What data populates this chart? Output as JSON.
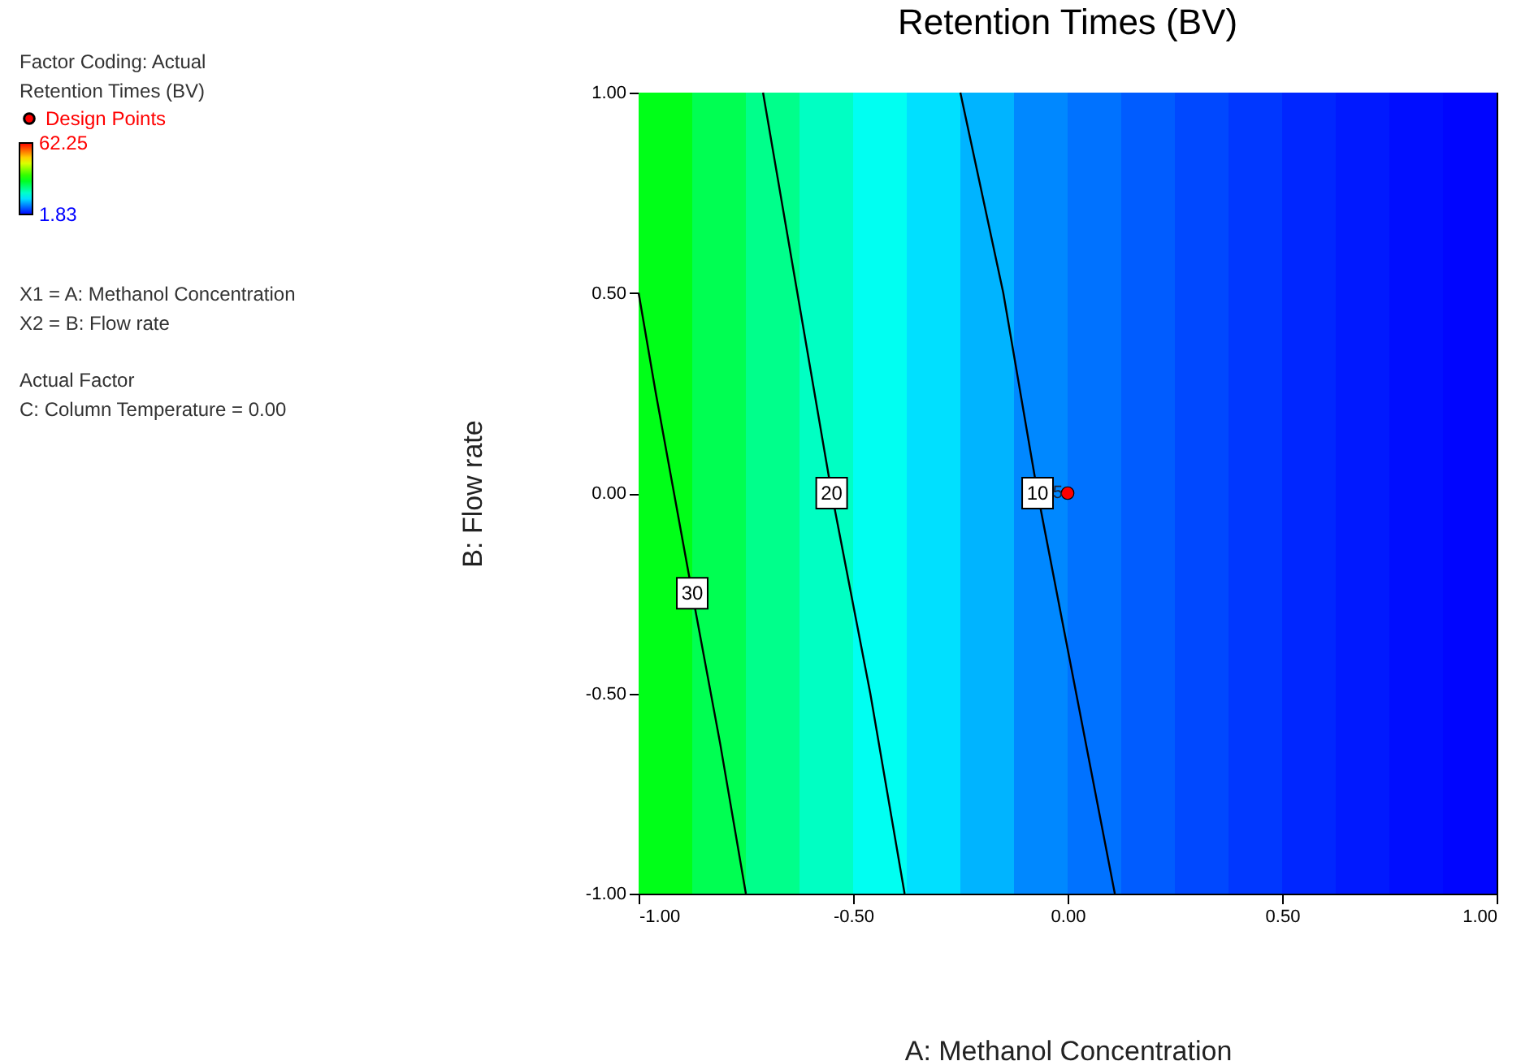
{
  "chart_data": {
    "type": "line",
    "title": "Retention Times (BV)",
    "xlabel": "A: Methanol Concentration",
    "ylabel": "B: Flow rate",
    "legend_title": "Retention Times (BV)",
    "xlim": [
      -1,
      1
    ],
    "ylim": [
      -1,
      1
    ],
    "xticks": [
      {
        "value": -1,
        "label": "-1.00"
      },
      {
        "value": -0.5,
        "label": "-0.50"
      },
      {
        "value": 0,
        "label": "0.00"
      },
      {
        "value": 0.5,
        "label": "0.50"
      },
      {
        "value": 1,
        "label": "1.00"
      }
    ],
    "yticks": [
      {
        "value": -1,
        "label": "-1.00"
      },
      {
        "value": -0.5,
        "label": "-0.50"
      },
      {
        "value": 0,
        "label": "0.00"
      },
      {
        "value": 0.5,
        "label": "0.50"
      },
      {
        "value": 1,
        "label": "1.00"
      }
    ],
    "grid": false,
    "legend": "top left",
    "clim": [
      1.83,
      62.25
    ],
    "cticks": [
      1.83,
      62.25
    ],
    "bands": [
      {
        "axis": "x",
        "from": -1,
        "to": -0.875,
        "color": "#00ff18"
      },
      {
        "axis": "x",
        "from": -0.875,
        "to": -0.75,
        "color": "#00ff52"
      },
      {
        "axis": "x",
        "from": -0.75,
        "to": -0.625,
        "color": "#00ff8b"
      },
      {
        "axis": "x",
        "from": -0.625,
        "to": -0.5,
        "color": "#00ffc3"
      },
      {
        "axis": "x",
        "from": -0.5,
        "to": -0.375,
        "color": "#00fff2"
      },
      {
        "axis": "x",
        "from": -0.375,
        "to": -0.25,
        "color": "#00e0ff"
      },
      {
        "axis": "x",
        "from": -0.25,
        "to": -0.125,
        "color": "#00b4ff"
      },
      {
        "axis": "x",
        "from": -0.125,
        "to": 0,
        "color": "#0088ff"
      },
      {
        "axis": "x",
        "from": 0,
        "to": 0.125,
        "color": "#0072ff"
      },
      {
        "axis": "x",
        "from": 0.125,
        "to": 0.25,
        "color": "#005cff"
      },
      {
        "axis": "x",
        "from": 0.25,
        "to": 0.375,
        "color": "#0048ff"
      },
      {
        "axis": "x",
        "from": 0.375,
        "to": 0.5,
        "color": "#0037ff"
      },
      {
        "axis": "x",
        "from": 0.5,
        "to": 0.625,
        "color": "#0026ff"
      },
      {
        "axis": "x",
        "from": 0.625,
        "to": 0.75,
        "color": "#0019ff"
      },
      {
        "axis": "x",
        "from": 0.75,
        "to": 0.875,
        "color": "#000dff"
      },
      {
        "axis": "x",
        "from": 0.875,
        "to": 1,
        "color": "#0005ff"
      }
    ],
    "series": [
      {
        "type": "line",
        "name": "30",
        "color": "#000000",
        "x": [
          -1.0,
          -0.96,
          -0.875,
          -0.81,
          -0.75
        ],
        "values": [
          0.5,
          0.25,
          -0.25,
          -0.625,
          -1
        ]
      },
      {
        "type": "line",
        "name": "20",
        "color": "#000000",
        "x": [
          -0.71,
          -0.63,
          -0.55,
          -0.46,
          -0.38
        ],
        "values": [
          1,
          0.5,
          0,
          -0.5,
          -1
        ]
      },
      {
        "type": "line",
        "name": "10",
        "color": "#000000",
        "x": [
          -0.25,
          -0.15,
          -0.07,
          0.02,
          0.11
        ],
        "values": [
          1,
          0.5,
          0,
          -0.5,
          -1
        ]
      },
      {
        "type": "scatter",
        "name": "Design Points",
        "color": "#ff0000",
        "marker": "circle",
        "x": [
          0
        ],
        "values": [
          0
        ]
      }
    ],
    "annotations": [
      "Factor Coding: Actual",
      {
        "text": "5",
        "x": 0,
        "y": 0
      },
      "X1 = A: Methanol Concentration",
      "X2 = B: Flow rate",
      "Actual Factor",
      "C: Column Temperature = 0.00"
    ]
  }
}
